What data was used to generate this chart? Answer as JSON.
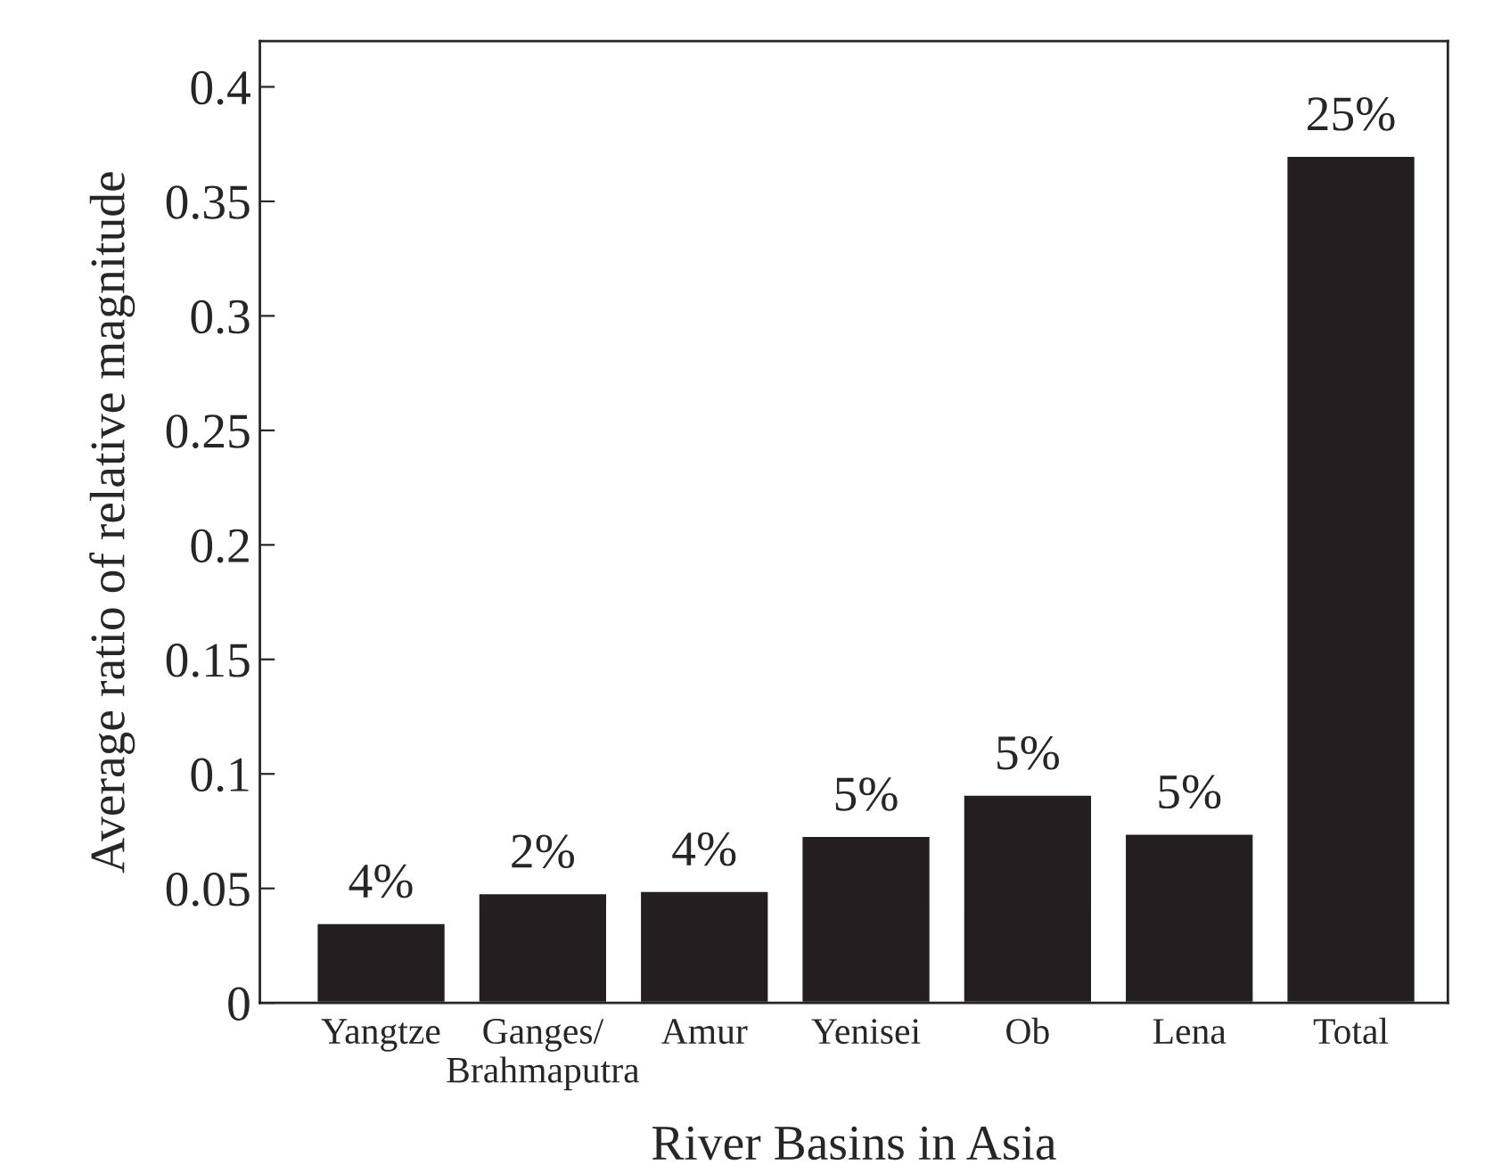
{
  "chart_data": {
    "type": "bar",
    "xlabel": "River Basins in Asia",
    "ylabel": "Average ratio of relative magnitude",
    "categories": [
      "Yangtze",
      "Ganges/\nBrahmaputra",
      "Amur",
      "Yenisei",
      "Ob",
      "Lena",
      "Total"
    ],
    "values": [
      0.035,
      0.048,
      0.049,
      0.073,
      0.091,
      0.074,
      0.37
    ],
    "annotations": [
      {
        "text": "4%",
        "x": "Yangtze",
        "y": 0.035
      },
      {
        "text": "2%",
        "x": "Ganges/\nBrahmaputra",
        "y": 0.048
      },
      {
        "text": "4%",
        "x": "Amur",
        "y": 0.049
      },
      {
        "text": "5%",
        "x": "Yenisei",
        "y": 0.073
      },
      {
        "text": "5%",
        "x": "Ob",
        "y": 0.091
      },
      {
        "text": "5%",
        "x": "Lena",
        "y": 0.074
      },
      {
        "text": "25%",
        "x": "Total",
        "y": 0.37
      }
    ],
    "color": "#231f20",
    "ylim": [
      0,
      0.42
    ],
    "yticks": [
      0,
      0.05,
      0.1,
      0.15,
      0.2,
      0.25,
      0.3,
      0.35,
      0.4
    ],
    "grid": false
  }
}
